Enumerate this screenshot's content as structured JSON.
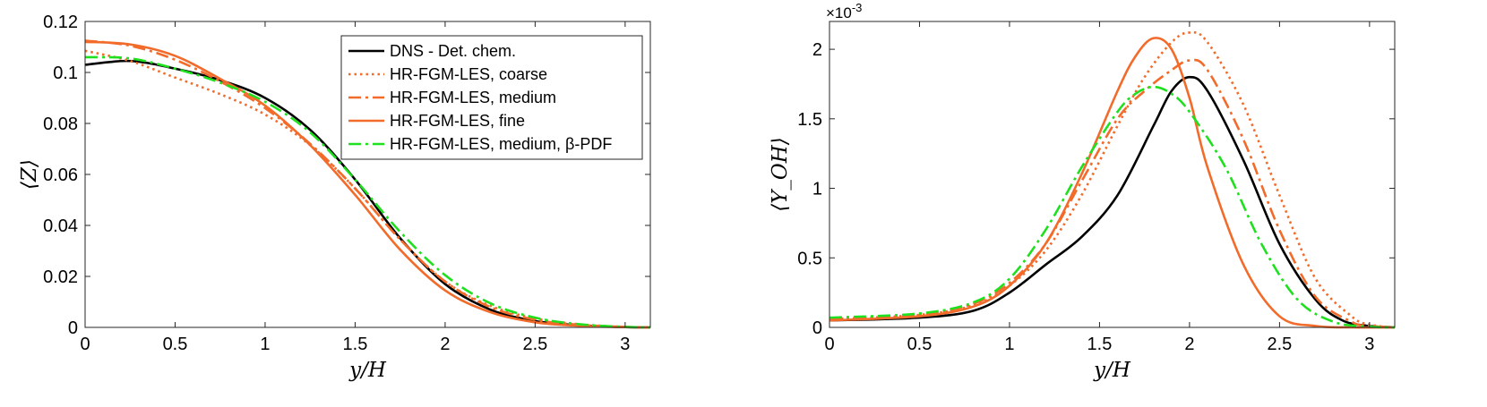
{
  "chart_data": [
    {
      "type": "line",
      "panel": "left",
      "xlabel": "y/H",
      "ylabel": "⟨Z⟩",
      "xlim": [
        0,
        3.14
      ],
      "ylim": [
        0,
        0.12
      ],
      "xticks": [
        0,
        0.5,
        1,
        1.5,
        2,
        2.5,
        3
      ],
      "xtick_labels": [
        "0",
        "0.5",
        "1",
        "1.5",
        "2",
        "2.5",
        "3"
      ],
      "yticks": [
        0,
        0.02,
        0.04,
        0.06,
        0.08,
        0.1,
        0.12
      ],
      "ytick_labels": [
        "0",
        "0.02",
        "0.04",
        "0.06",
        "0.08",
        "0.1",
        "0.12"
      ],
      "legend_position": "top-right",
      "series": [
        {
          "name": "DNS - Det. chem.",
          "color": "#000000",
          "dash": "solid",
          "x": [
            0,
            0.25,
            0.5,
            0.75,
            1.0,
            1.25,
            1.5,
            1.75,
            2.0,
            2.25,
            2.5,
            2.75,
            3.0,
            3.14
          ],
          "y": [
            0.103,
            0.1045,
            0.1015,
            0.097,
            0.09,
            0.0775,
            0.058,
            0.035,
            0.017,
            0.007,
            0.0025,
            0.0008,
            0.0001,
            0
          ]
        },
        {
          "name": "HR-FGM-LES, coarse",
          "color": "#f26b2a",
          "dash": "dotted",
          "x": [
            0,
            0.25,
            0.5,
            0.75,
            1.0,
            1.25,
            1.5,
            1.75,
            2.0,
            2.25,
            2.5,
            2.75,
            3.0,
            3.14
          ],
          "y": [
            0.1085,
            0.1045,
            0.098,
            0.0915,
            0.0835,
            0.0715,
            0.0545,
            0.0345,
            0.018,
            0.0085,
            0.0035,
            0.0012,
            0.0002,
            0
          ]
        },
        {
          "name": "HR-FGM-LES, medium",
          "color": "#f26b2a",
          "dash": "dashdot",
          "x": [
            0,
            0.25,
            0.5,
            0.75,
            1.0,
            1.25,
            1.5,
            1.75,
            2.0,
            2.25,
            2.5,
            2.75,
            3.0,
            3.14
          ],
          "y": [
            0.1125,
            0.1105,
            0.105,
            0.0965,
            0.086,
            0.072,
            0.0545,
            0.0345,
            0.018,
            0.008,
            0.003,
            0.001,
            0.0002,
            0
          ]
        },
        {
          "name": "HR-FGM-LES, fine",
          "color": "#f26b2a",
          "dash": "solid",
          "x": [
            0,
            0.25,
            0.5,
            0.75,
            1.0,
            1.25,
            1.5,
            1.75,
            2.0,
            2.25,
            2.5,
            2.75,
            3.0,
            3.14
          ],
          "y": [
            0.112,
            0.111,
            0.1065,
            0.0975,
            0.087,
            0.0715,
            0.052,
            0.0305,
            0.0145,
            0.006,
            0.002,
            0.0006,
            0.0001,
            0
          ]
        },
        {
          "name": "HR-FGM-LES, medium, β-PDF",
          "color": "#1fe01f",
          "dash": "dashdot",
          "x": [
            0,
            0.25,
            0.5,
            0.75,
            1.0,
            1.25,
            1.5,
            1.75,
            2.0,
            2.25,
            2.5,
            2.75,
            3.0,
            3.14
          ],
          "y": [
            0.106,
            0.1055,
            0.1015,
            0.096,
            0.0885,
            0.0765,
            0.058,
            0.0375,
            0.0205,
            0.0095,
            0.0038,
            0.0012,
            0.0002,
            0
          ]
        }
      ]
    },
    {
      "type": "line",
      "panel": "right",
      "xlabel": "y/H",
      "ylabel": "⟨Y_OH⟩",
      "y_multiplier": "×10",
      "y_multiplier_exponent": "-3",
      "xlim": [
        0,
        3.14
      ],
      "ylim": [
        0,
        2.2
      ],
      "xticks": [
        0,
        0.5,
        1,
        1.5,
        2,
        2.5,
        3
      ],
      "xtick_labels": [
        "0",
        "0.5",
        "1",
        "1.5",
        "2",
        "2.5",
        "3"
      ],
      "yticks": [
        0,
        0.5,
        1,
        1.5,
        2
      ],
      "ytick_labels": [
        "0",
        "0.5",
        "1",
        "1.5",
        "2"
      ],
      "series": [
        {
          "name": "DNS - Det. chem.",
          "color": "#000000",
          "dash": "solid",
          "x": [
            0,
            0.5,
            0.8,
            1.0,
            1.2,
            1.4,
            1.6,
            1.8,
            1.9,
            2.0,
            2.1,
            2.3,
            2.5,
            2.7,
            2.85,
            3.0,
            3.14
          ],
          "y": [
            0.05,
            0.07,
            0.12,
            0.25,
            0.45,
            0.65,
            0.95,
            1.45,
            1.7,
            1.8,
            1.7,
            1.2,
            0.6,
            0.2,
            0.05,
            0.01,
            0
          ]
        },
        {
          "name": "HR-FGM-LES, coarse",
          "color": "#f26b2a",
          "dash": "dotted",
          "x": [
            0,
            0.5,
            0.8,
            1.0,
            1.2,
            1.4,
            1.6,
            1.75,
            1.9,
            2.0,
            2.1,
            2.3,
            2.5,
            2.7,
            2.9,
            3.0,
            3.14
          ],
          "y": [
            0.06,
            0.09,
            0.16,
            0.3,
            0.55,
            0.95,
            1.45,
            1.8,
            2.05,
            2.12,
            2.05,
            1.6,
            0.95,
            0.35,
            0.08,
            0.02,
            0
          ]
        },
        {
          "name": "HR-FGM-LES, medium",
          "color": "#f26b2a",
          "dash": "dashdot",
          "x": [
            0,
            0.5,
            0.8,
            1.0,
            1.2,
            1.4,
            1.6,
            1.75,
            1.9,
            2.0,
            2.1,
            2.3,
            2.5,
            2.7,
            2.9,
            3.0,
            3.14
          ],
          "y": [
            0.06,
            0.09,
            0.17,
            0.32,
            0.6,
            1.05,
            1.5,
            1.7,
            1.85,
            1.92,
            1.85,
            1.35,
            0.7,
            0.22,
            0.04,
            0.01,
            0
          ]
        },
        {
          "name": "HR-FGM-LES, fine",
          "color": "#f26b2a",
          "dash": "solid",
          "x": [
            0,
            0.5,
            0.8,
            1.0,
            1.2,
            1.4,
            1.6,
            1.7,
            1.8,
            1.9,
            2.0,
            2.1,
            2.3,
            2.5,
            2.7,
            2.9,
            3.14
          ],
          "y": [
            0.05,
            0.08,
            0.15,
            0.3,
            0.6,
            1.1,
            1.7,
            1.95,
            2.08,
            2.0,
            1.65,
            1.15,
            0.45,
            0.08,
            0.01,
            0,
            0
          ]
        },
        {
          "name": "HR-FGM-LES, medium, β-PDF",
          "color": "#1fe01f",
          "dash": "dashdot",
          "x": [
            0,
            0.5,
            0.8,
            1.0,
            1.2,
            1.4,
            1.6,
            1.7,
            1.8,
            1.9,
            2.0,
            2.2,
            2.4,
            2.6,
            2.8,
            3.0,
            3.14
          ],
          "y": [
            0.07,
            0.1,
            0.18,
            0.35,
            0.7,
            1.15,
            1.55,
            1.68,
            1.73,
            1.68,
            1.55,
            1.15,
            0.6,
            0.2,
            0.04,
            0.005,
            0
          ]
        }
      ]
    }
  ],
  "legend": {
    "entries": [
      {
        "label": "DNS - Det. chem."
      },
      {
        "label": "HR-FGM-LES, coarse"
      },
      {
        "label": "HR-FGM-LES, medium"
      },
      {
        "label": "HR-FGM-LES, fine"
      },
      {
        "label": "HR-FGM-LES, medium, β-PDF"
      }
    ]
  }
}
